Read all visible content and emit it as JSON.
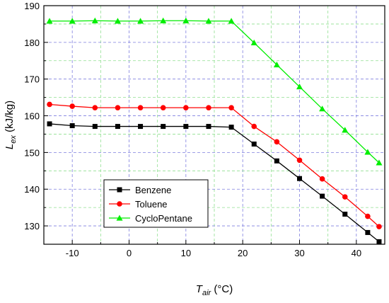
{
  "chart_data": {
    "type": "line",
    "xlabel": {
      "main": "T",
      "sub": "air",
      "unit": " (°C)"
    },
    "ylabel": {
      "main": "L",
      "sub": "ex",
      "unit": " (kJ/kg)"
    },
    "xlim": [
      -15,
      45
    ],
    "ylim": [
      125,
      190
    ],
    "xticks": [
      -10,
      0,
      10,
      20,
      30,
      40
    ],
    "yticks": [
      130,
      140,
      150,
      160,
      170,
      180,
      190
    ],
    "grid": true,
    "legend_position": "lower-left",
    "x": [
      -14,
      -10,
      -6,
      -2,
      2,
      6,
      10,
      14,
      18,
      22,
      26,
      30,
      34,
      38,
      42,
      44
    ],
    "series": [
      {
        "name": "Benzene",
        "color": "#000000",
        "marker": "square",
        "values": [
          157.8,
          157.3,
          157.1,
          157.1,
          157.1,
          157.1,
          157.1,
          157.1,
          156.9,
          152.3,
          147.7,
          142.9,
          138.1,
          133.2,
          128.2,
          125.7
        ]
      },
      {
        "name": "Toluene",
        "color": "#ff0000",
        "marker": "circle",
        "values": [
          163.1,
          162.6,
          162.2,
          162.2,
          162.2,
          162.2,
          162.2,
          162.2,
          162.2,
          157.1,
          152.9,
          147.9,
          142.8,
          137.9,
          132.6,
          129.8
        ]
      },
      {
        "name": "CycloPentane",
        "color": "#00ee00",
        "marker": "triangle",
        "values": [
          185.8,
          185.8,
          185.9,
          185.8,
          185.8,
          185.9,
          185.9,
          185.8,
          185.8,
          179.9,
          173.9,
          167.9,
          161.9,
          156.1,
          150.1,
          147.2
        ]
      }
    ]
  }
}
